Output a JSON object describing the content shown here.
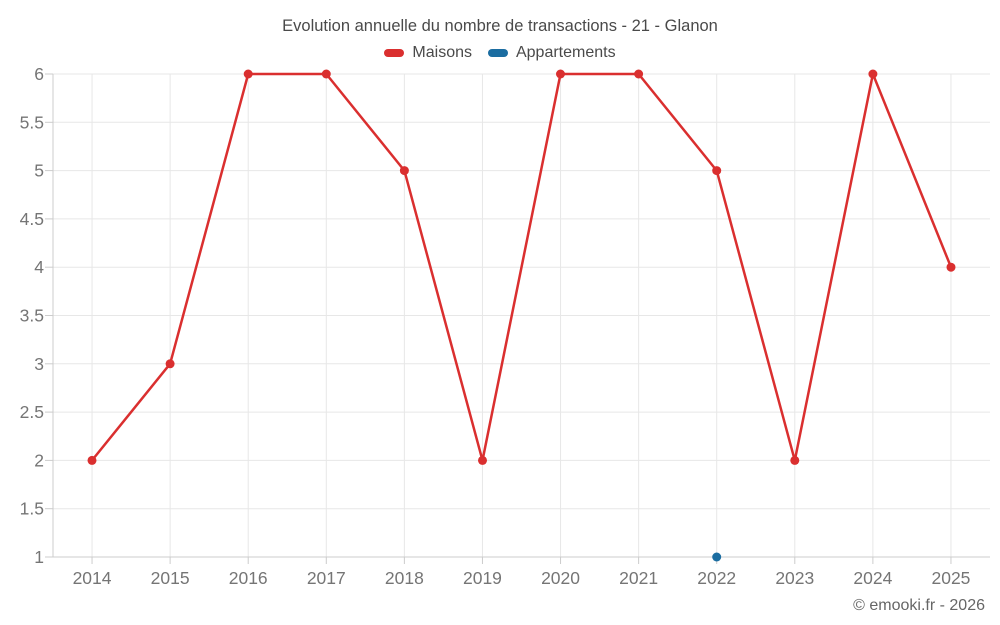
{
  "chart_data": {
    "type": "line",
    "title": "Evolution annuelle du nombre de transactions - 21 - Glanon",
    "categories": [
      "2014",
      "2015",
      "2016",
      "2017",
      "2018",
      "2019",
      "2020",
      "2021",
      "2022",
      "2023",
      "2024",
      "2025"
    ],
    "series": [
      {
        "name": "Maisons",
        "color": "#da2f2f",
        "values": [
          2,
          3,
          6,
          6,
          5,
          2,
          6,
          6,
          5,
          2,
          6,
          4
        ]
      },
      {
        "name": "Appartements",
        "color": "#1b6da1",
        "values": [
          null,
          null,
          null,
          null,
          null,
          null,
          null,
          null,
          1,
          null,
          null,
          null
        ]
      }
    ],
    "xlabel": "",
    "ylabel": "",
    "ylim": [
      1,
      6
    ],
    "ytick_step": 0.5,
    "grid": true,
    "legend_position": "top"
  },
  "colors": {
    "grid": "#e7e7e7",
    "axis_line": "#cccccc",
    "tick": "#cccccc",
    "axis_label": "#757575",
    "title": "#4a4a4a",
    "footer": "#666666",
    "background": "#ffffff"
  },
  "footer": {
    "copyright": "© emooki.fr - 2026"
  }
}
